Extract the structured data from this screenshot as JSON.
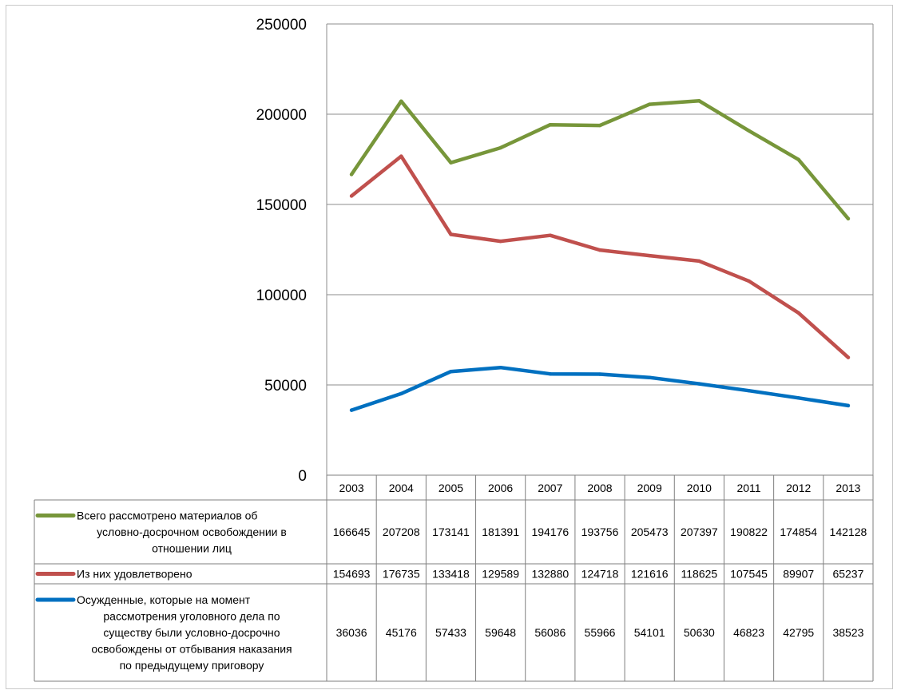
{
  "chart_data": {
    "type": "line",
    "categories": [
      "2003",
      "2004",
      "2005",
      "2006",
      "2007",
      "2008",
      "2009",
      "2010",
      "2011",
      "2012",
      "2013"
    ],
    "ylim": [
      0,
      250000
    ],
    "yticks": [
      0,
      50000,
      100000,
      150000,
      200000,
      250000
    ],
    "grid": true,
    "legend_position": "data-table",
    "series": [
      {
        "name": "Всего рассмотрено материалов  об условно-досрочном освобождении в отношении лиц",
        "name_lines": [
          "Всего рассмотрено материалов  об",
          "условно-досрочном освобождении в",
          "отношении лиц"
        ],
        "color": "#77963a",
        "values": [
          166645,
          207208,
          173141,
          181391,
          194176,
          193756,
          205473,
          207397,
          190822,
          174854,
          142128
        ]
      },
      {
        "name": "Из них удовлетворено",
        "name_lines": [
          "Из них удовлетворено"
        ],
        "color": "#c0504d",
        "values": [
          154693,
          176735,
          133418,
          129589,
          132880,
          124718,
          121616,
          118625,
          107545,
          89907,
          65237
        ]
      },
      {
        "name": "Осужденные, которые на момент рассмотрения уголовного дела по существу были условно-досрочно освобождены от отбывания наказания по предыдущему приговору",
        "name_lines": [
          "Осужденные, которые на момент",
          "рассмотрения уголовного дела по",
          "существу были условно-досрочно",
          "освобождены от отбывания наказания",
          "по предыдущему приговору"
        ],
        "color": "#0070c0",
        "values": [
          36036,
          45176,
          57433,
          59648,
          56086,
          55966,
          54101,
          50630,
          46823,
          42795,
          38523
        ]
      }
    ]
  }
}
